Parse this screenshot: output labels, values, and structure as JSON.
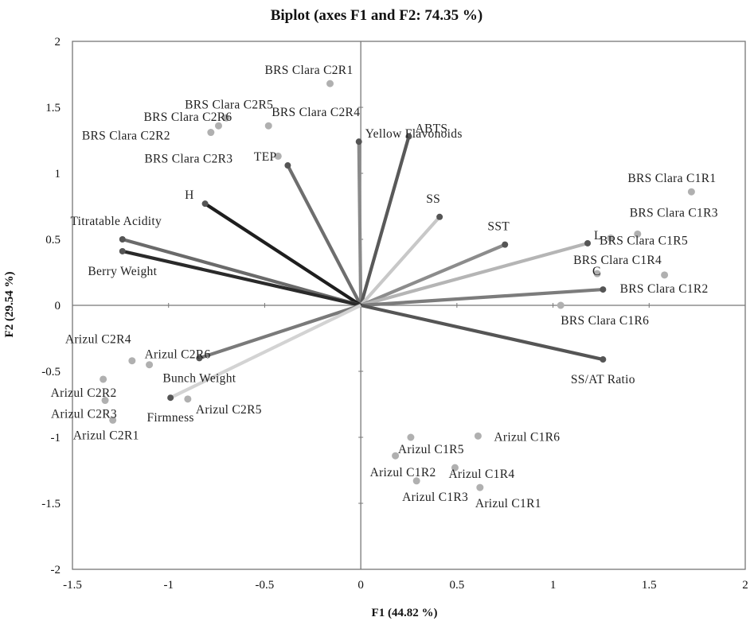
{
  "chart_data": {
    "type": "scatter",
    "title": "Biplot (axes F1 and F2: 74.35 %)",
    "xlabel": "F1 (44.82 %)",
    "ylabel": "F2 (29.54 %)",
    "xlim": [
      -1.5,
      2
    ],
    "ylim": [
      -2,
      2
    ],
    "xticks": [
      -1.5,
      -1,
      -0.5,
      0,
      0.5,
      1,
      1.5,
      2
    ],
    "yticks": [
      -2,
      -1.5,
      -1,
      -0.5,
      0,
      0.5,
      1,
      1.5,
      2
    ],
    "xtick_labels": [
      "-1.5",
      "-1",
      "-0.5",
      "0",
      "0.5",
      "1",
      "1.5",
      "2"
    ],
    "ytick_labels": [
      "-2",
      "-1.5",
      "-1",
      "-0.5",
      "0",
      "0.5",
      "1",
      "1.5",
      "2"
    ],
    "grid": false,
    "variables": [
      {
        "name": "Yellow Flavonoids",
        "x": -0.01,
        "y": 1.24,
        "color": "#8a8a8a",
        "label_anchor": "right"
      },
      {
        "name": "ABTS",
        "x": 0.25,
        "y": 1.28,
        "color": "#595959",
        "label_anchor": "right"
      },
      {
        "name": "TEP",
        "x": -0.38,
        "y": 1.06,
        "color": "#6e6e6e",
        "label_anchor": "left"
      },
      {
        "name": "SS",
        "x": 0.41,
        "y": 0.67,
        "color": "#c8c8c8",
        "label_anchor": "above"
      },
      {
        "name": "SST",
        "x": 0.75,
        "y": 0.46,
        "color": "#8c8c8c",
        "label_anchor": "above"
      },
      {
        "name": "L",
        "x": 1.18,
        "y": 0.47,
        "color": "#b5b5b5",
        "label_anchor": "right"
      },
      {
        "name": "C",
        "x": 1.26,
        "y": 0.12,
        "color": "#7c7c7c",
        "label_anchor": "above"
      },
      {
        "name": "SS/AT Ratio",
        "x": 1.26,
        "y": -0.41,
        "color": "#555555",
        "label_anchor": "below"
      },
      {
        "name": "H",
        "x": -0.81,
        "y": 0.77,
        "color": "#1e1e1e",
        "label_anchor": "left"
      },
      {
        "name": "Titratable Acidity",
        "x": -1.24,
        "y": 0.5,
        "color": "#6a6a6a",
        "label_anchor": "above"
      },
      {
        "name": "Berry Weight",
        "x": -1.24,
        "y": 0.41,
        "color": "#2a2a2a",
        "label_anchor": "below"
      },
      {
        "name": "Bunch Weight",
        "x": -0.84,
        "y": -0.4,
        "color": "#7a7a7a",
        "label_anchor": "below"
      },
      {
        "name": "Firmness",
        "x": -0.99,
        "y": -0.7,
        "color": "#d3d3d3",
        "label_anchor": "below"
      }
    ],
    "observations": [
      {
        "name": "BRS Clara C2R1",
        "x": -0.16,
        "y": 1.68
      },
      {
        "name": "BRS Clara C2R5",
        "x": -0.7,
        "y": 1.42
      },
      {
        "name": "BRS Clara C2R4",
        "x": -0.48,
        "y": 1.36
      },
      {
        "name": "BRS Clara C2R6",
        "x": -0.74,
        "y": 1.36
      },
      {
        "name": "BRS Clara C2R2",
        "x": -0.78,
        "y": 1.31
      },
      {
        "name": "BRS Clara C2R3",
        "x": -0.43,
        "y": 1.13
      },
      {
        "name": "BRS Clara C1R1",
        "x": 1.72,
        "y": 0.86
      },
      {
        "name": "BRS Clara C1R3",
        "x": 1.44,
        "y": 0.54
      },
      {
        "name": "BRS Clara C1R5",
        "x": 1.3,
        "y": 0.51
      },
      {
        "name": "BRS Clara C1R4",
        "x": 1.23,
        "y": 0.24
      },
      {
        "name": "BRS Clara C1R2",
        "x": 1.58,
        "y": 0.23
      },
      {
        "name": "BRS Clara C1R6",
        "x": 1.04,
        "y": 0.0
      },
      {
        "name": "Arizul C2R4",
        "x": -1.19,
        "y": -0.42
      },
      {
        "name": "Arizul C2R6",
        "x": -1.1,
        "y": -0.45
      },
      {
        "name": "Arizul C2R2",
        "x": -1.34,
        "y": -0.56
      },
      {
        "name": "Arizul C2R3",
        "x": -1.33,
        "y": -0.72
      },
      {
        "name": "Arizul C2R5",
        "x": -0.9,
        "y": -0.71
      },
      {
        "name": "Arizul C2R1",
        "x": -1.29,
        "y": -0.87
      },
      {
        "name": "Arizul C1R6",
        "x": 0.61,
        "y": -0.99
      },
      {
        "name": "Arizul C1R5",
        "x": 0.26,
        "y": -1.0
      },
      {
        "name": "Arizul C1R2",
        "x": 0.18,
        "y": -1.14
      },
      {
        "name": "Arizul C1R4",
        "x": 0.49,
        "y": -1.23
      },
      {
        "name": "Arizul C1R3",
        "x": 0.29,
        "y": -1.33
      },
      {
        "name": "Arizul C1R1",
        "x": 0.62,
        "y": -1.38
      }
    ]
  }
}
